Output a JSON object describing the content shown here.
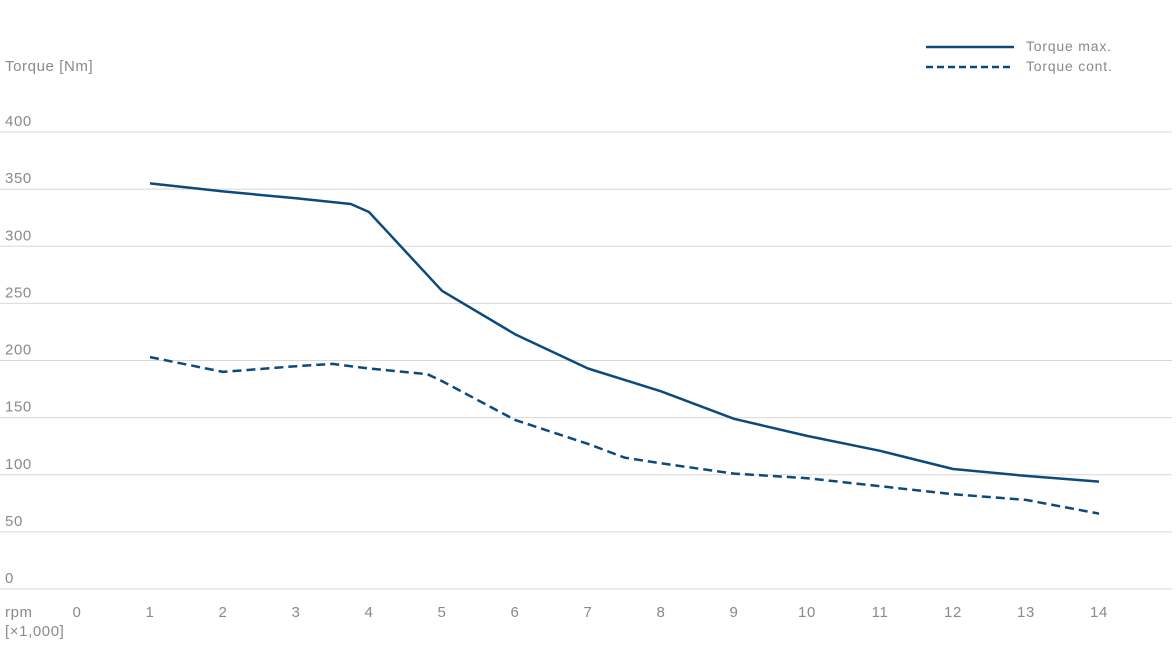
{
  "chart_data": {
    "type": "line",
    "ylabel": "Torque [Nm]",
    "xlabel_line1": "rpm",
    "xlabel_line2": "[×1,000]",
    "ylim": [
      0,
      400
    ],
    "xlim": [
      0,
      14
    ],
    "y_ticks": [
      "0",
      "50",
      "100",
      "150",
      "200",
      "250",
      "300",
      "350",
      "400"
    ],
    "x_ticks": [
      "0",
      "1",
      "2",
      "3",
      "4",
      "5",
      "6",
      "7",
      "8",
      "9",
      "10",
      "11",
      "12",
      "13",
      "14"
    ],
    "grid": true,
    "legend_position": "top-right",
    "line_color": "#0d4a7c",
    "grid_color": "#d8d8d8",
    "series": [
      {
        "name": "Torque max.",
        "style": "solid",
        "x": [
          1,
          2,
          3,
          3.75,
          4,
          5,
          6,
          7,
          8,
          9,
          10,
          11,
          12,
          13,
          14
        ],
        "y": [
          355,
          348,
          342,
          337,
          330,
          261,
          223,
          193,
          173,
          149,
          134,
          121,
          105,
          99,
          94
        ]
      },
      {
        "name": "Torque cont.",
        "style": "dashed",
        "x": [
          1,
          2,
          3,
          3.5,
          4,
          4.8,
          5,
          6,
          7,
          7.5,
          8,
          9,
          10,
          11,
          12,
          13,
          14
        ],
        "y": [
          203,
          190,
          195,
          197,
          193,
          188,
          182,
          148,
          127,
          115,
          110,
          101,
          97,
          90,
          83,
          78,
          66
        ]
      }
    ]
  }
}
